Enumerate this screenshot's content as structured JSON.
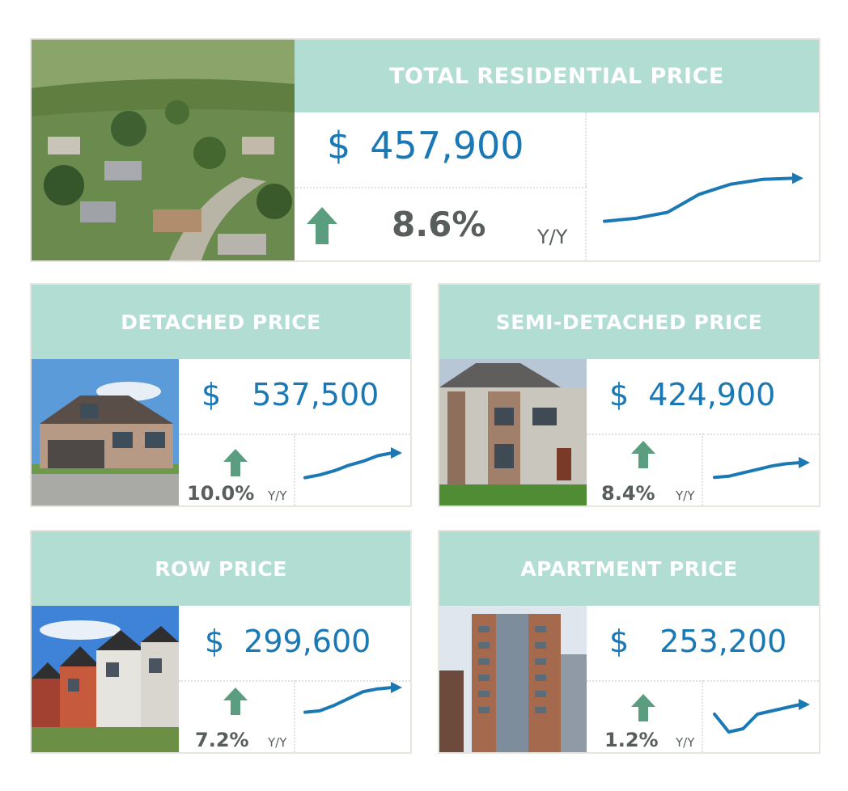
{
  "colors": {
    "header_bg": "#b2ddd3",
    "price": "#1a78b4",
    "arrow": "#5a9e7f",
    "text": "#585e5c",
    "spark": "#1a78b4"
  },
  "total": {
    "title": "TOTAL RESIDENTIAL PRICE",
    "currency": "$",
    "price": "457,900",
    "change": "8.6%",
    "change_unit": "Y/Y",
    "direction": "up",
    "trend": [
      0.1,
      0.15,
      0.25,
      0.55,
      0.72,
      0.8,
      0.82
    ]
  },
  "detached": {
    "title": "DETACHED PRICE",
    "currency": "$",
    "price": "537,500",
    "change": "10.0%",
    "change_unit": "Y/Y",
    "direction": "up",
    "trend": [
      0.1,
      0.2,
      0.35,
      0.55,
      0.7,
      0.9,
      1.0
    ]
  },
  "semi": {
    "title": "SEMI-DETACHED PRICE",
    "currency": "$",
    "price": "424,900",
    "change": "8.4%",
    "change_unit": "Y/Y",
    "direction": "up",
    "trend": [
      0.1,
      0.15,
      0.3,
      0.45,
      0.6,
      0.7,
      0.75
    ]
  },
  "row": {
    "title": "ROW PRICE",
    "currency": "$",
    "price": "299,600",
    "change": "7.2%",
    "change_unit": "Y/Y",
    "direction": "up",
    "trend": [
      0.1,
      0.15,
      0.35,
      0.6,
      0.85,
      0.95,
      1.0
    ]
  },
  "apartment": {
    "title": "APARTMENT PRICE",
    "currency": "$",
    "price": "253,200",
    "change": "1.2%",
    "change_unit": "Y/Y",
    "direction": "up",
    "trend": [
      0.55,
      0.0,
      0.1,
      0.55,
      0.65,
      0.75,
      0.85
    ]
  }
}
